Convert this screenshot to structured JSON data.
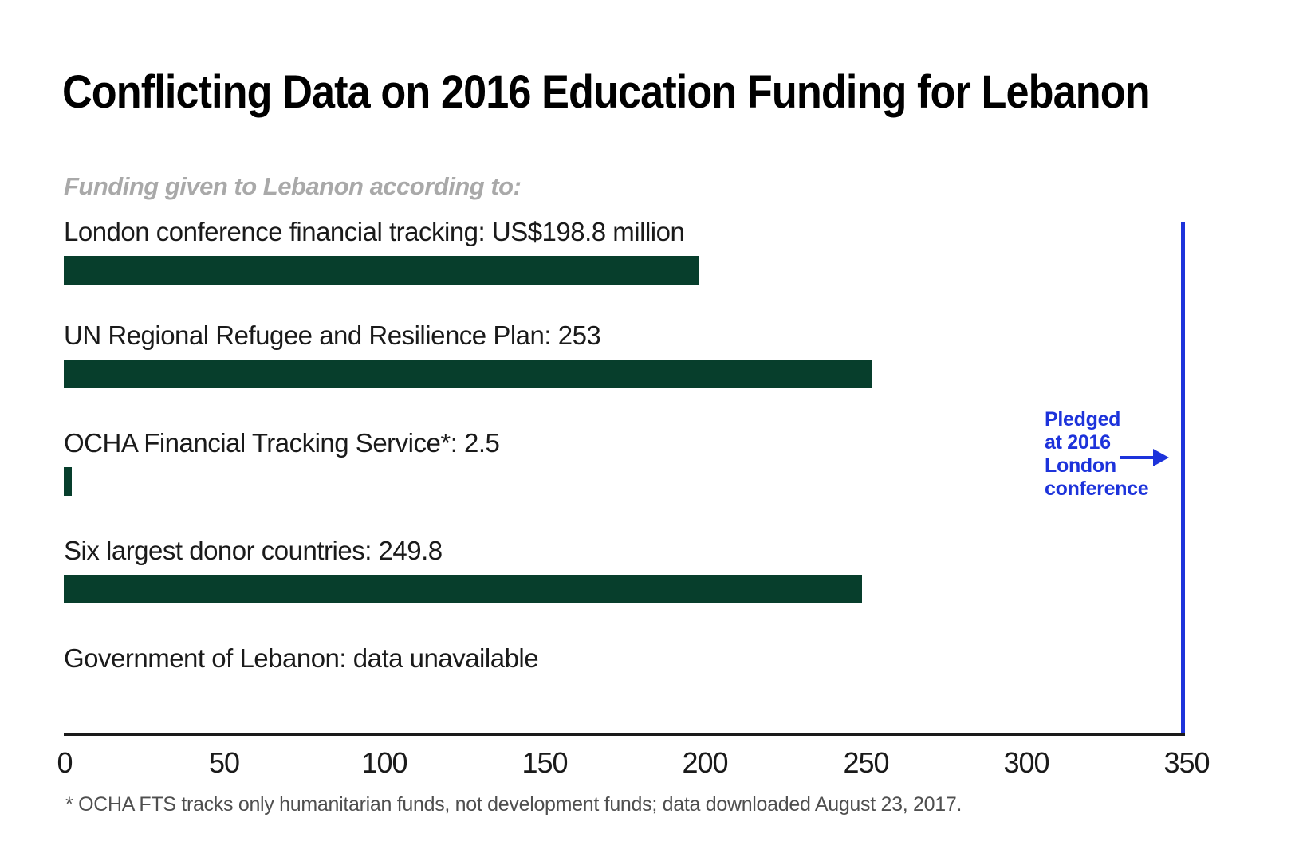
{
  "title": "Conflicting Data on 2016 Education Funding for Lebanon",
  "subtitle": "Funding given to Lebanon according to:",
  "footnote": "* OCHA FTS tracks only humanitarian funds, not development funds; data downloaded August 23, 2017.",
  "annotation": {
    "lines": [
      "Pledged",
      "at 2016",
      "London",
      "conference"
    ]
  },
  "colors": {
    "bar": "#073e2c",
    "accent_blue": "#1d33db",
    "title_text": "#000000",
    "label_text": "#1a1a1a",
    "subtitle_text": "#a9a9a9",
    "footnote_text": "#4f4f4f",
    "axis": "#1a1a1a"
  },
  "chart_data": {
    "type": "bar",
    "orientation": "horizontal",
    "title": "Conflicting Data on 2016 Education Funding for Lebanon",
    "subtitle": "Funding given to Lebanon according to:",
    "unit": "US$ million",
    "xlim": [
      0,
      350
    ],
    "x_ticks": [
      "0",
      "50",
      "100",
      "150",
      "200",
      "250",
      "300",
      "350"
    ],
    "grid": false,
    "legend": "none",
    "bar_color": "#073e2c",
    "rows": [
      {
        "label": "London conference financial tracking: US$198.8 million",
        "value": 198.8
      },
      {
        "label": "UN Regional Refugee and Resilience Plan: 253",
        "value": 253
      },
      {
        "label": "OCHA Financial Tracking Service*: 2.5",
        "value": 2.5
      },
      {
        "label": "Six largest donor countries: 249.8",
        "value": 249.8
      },
      {
        "label": "Government of Lebanon: data unavailable",
        "value": null
      }
    ],
    "reference_line": {
      "value": 350,
      "label": "Pledged at 2016 London conference",
      "color": "#1d33db"
    }
  }
}
